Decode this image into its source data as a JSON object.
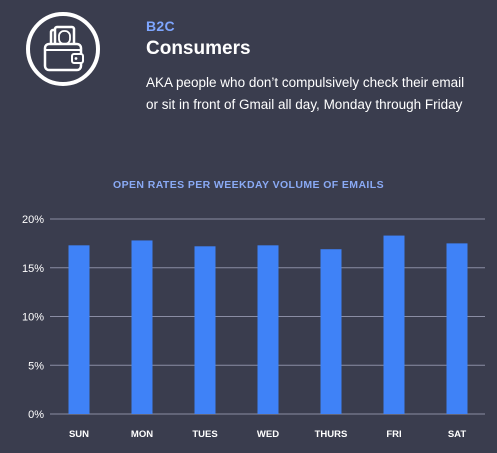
{
  "header": {
    "icon": "wallet-icon",
    "kicker": "B2C",
    "title": "Consumers",
    "description": "AKA people who don’t compulsively check their email or sit in front of Gmail all day, Monday through Friday"
  },
  "colors": {
    "background": "#3a3d4e",
    "bar": "#3f82f7",
    "accent": "#7ea6ff",
    "grid": "#8a8da3"
  },
  "chart_data": {
    "type": "bar",
    "title": "OPEN RATES PER WEEKDAY VOLUME OF EMAILS",
    "xlabel": "",
    "ylabel": "",
    "categories": [
      "SUN",
      "MON",
      "TUES",
      "WED",
      "THURS",
      "FRI",
      "SAT"
    ],
    "values": [
      17.3,
      17.8,
      17.2,
      17.3,
      16.9,
      18.3,
      17.5
    ],
    "yticks": [
      0,
      5,
      10,
      15,
      20
    ],
    "ytick_labels": [
      "0%",
      "5%",
      "10%",
      "15%",
      "20%"
    ],
    "ylim": [
      0,
      20
    ],
    "grid": true,
    "legend": "none"
  }
}
